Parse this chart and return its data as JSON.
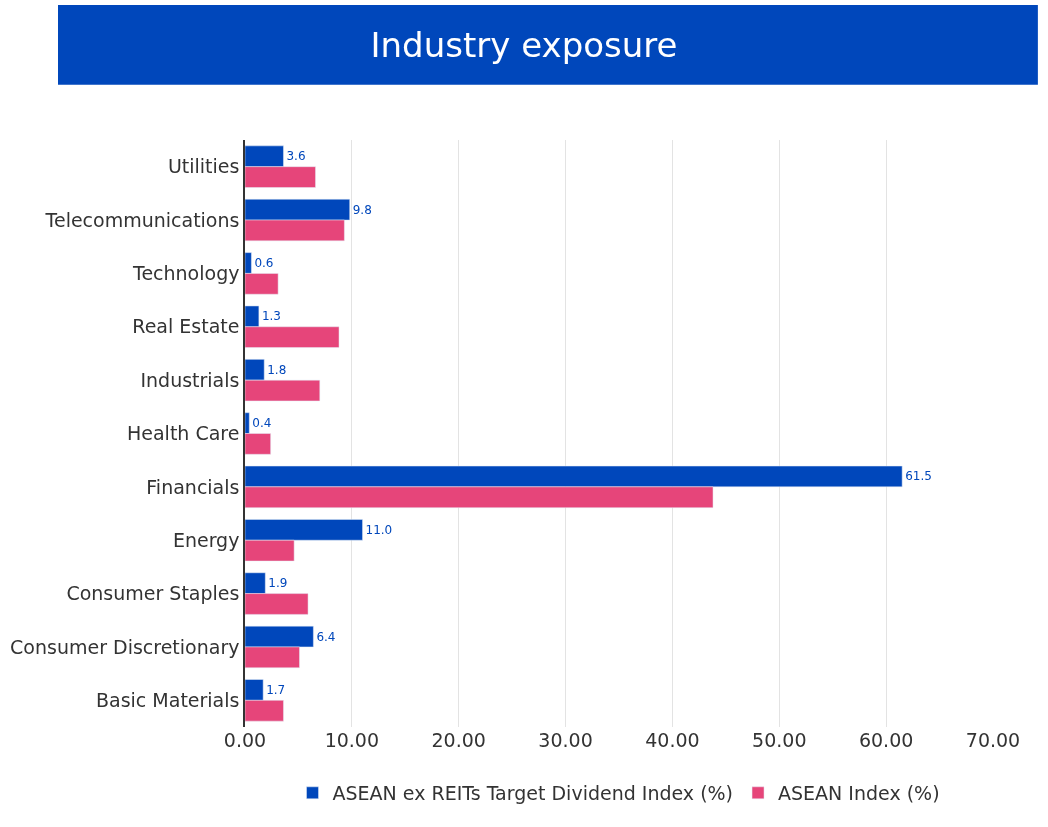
{
  "chart_data": {
    "type": "bar",
    "orientation": "horizontal",
    "title": "Industry exposure",
    "categories": [
      "Utilities",
      "Telecommunications",
      "Technology",
      "Real Estate",
      "Industrials",
      "Health Care",
      "Financials",
      "Energy",
      "Consumer Staples",
      "Consumer Discretionary",
      "Basic Materials"
    ],
    "series": [
      {
        "name": "ASEAN ex REITs Target Dividend Index (%)",
        "color": "#0047bb",
        "values": [
          3.6,
          9.8,
          0.6,
          1.3,
          1.8,
          0.4,
          61.5,
          11.0,
          1.9,
          6.4,
          1.7
        ],
        "value_labels": [
          "3.6",
          "9.8",
          "0.6",
          "1.3",
          "1.8",
          "0.4",
          "61.5",
          "11.0",
          "1.9",
          "6.4",
          "1.7"
        ]
      },
      {
        "name": "ASEAN Index (%)",
        "color": "#e6457a",
        "values": [
          6.6,
          9.3,
          3.1,
          8.8,
          7.0,
          2.4,
          43.8,
          4.6,
          5.9,
          5.1,
          3.6
        ]
      }
    ],
    "xlim": [
      0,
      70
    ],
    "xticks": [
      {
        "value": 0,
        "label": "0.00"
      },
      {
        "value": 10,
        "label": "10.00"
      },
      {
        "value": 20,
        "label": "20.00"
      },
      {
        "value": 30,
        "label": "30.00"
      },
      {
        "value": 40,
        "label": "40.00"
      },
      {
        "value": 50,
        "label": "50.00"
      },
      {
        "value": 60,
        "label": "60.00"
      },
      {
        "value": 70,
        "label": "70.00"
      }
    ],
    "grid": "x",
    "legend": "bottom"
  }
}
